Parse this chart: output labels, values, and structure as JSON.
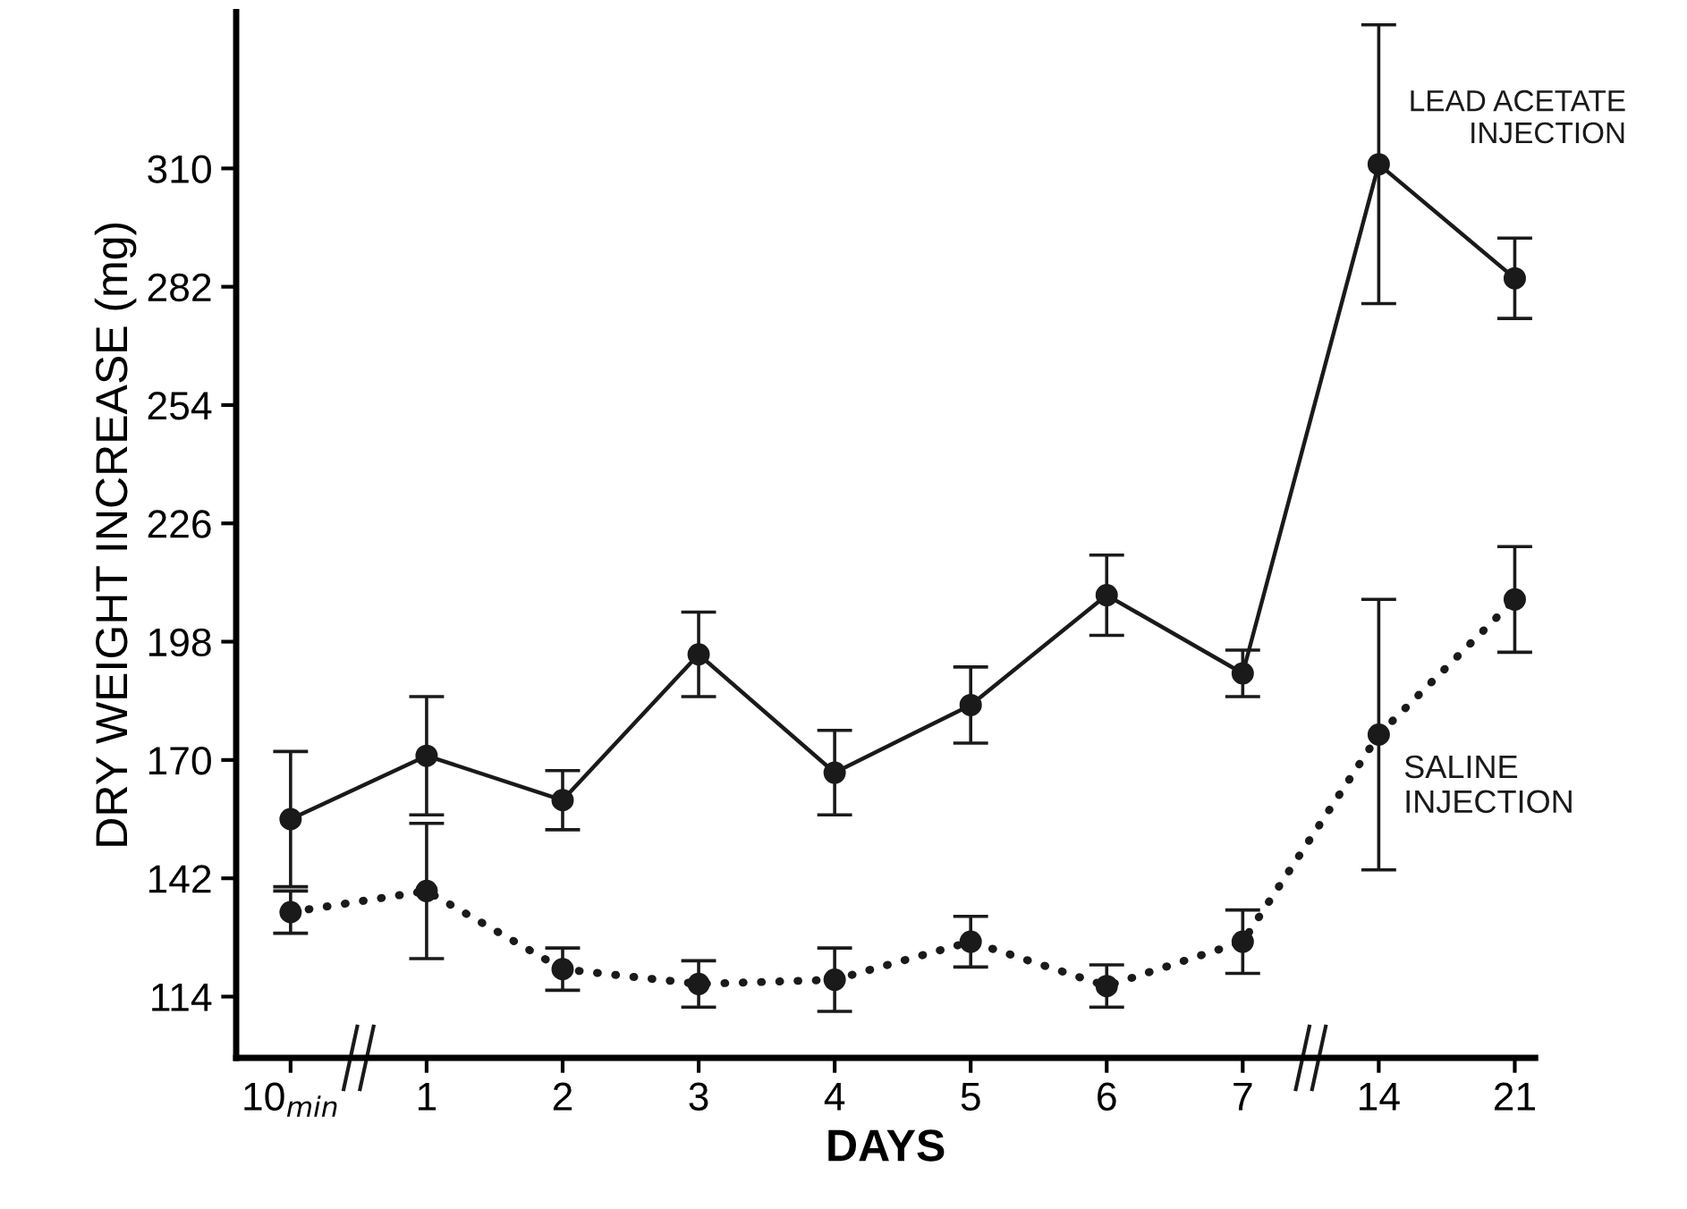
{
  "chart_data": {
    "type": "line",
    "xlabel": "DAYS",
    "ylabel": "DRY WEIGHT INCREASE (mg)",
    "categories": [
      "10$_{min}$",
      "1",
      "2",
      "3",
      "4",
      "5",
      "6",
      "7",
      "14",
      "21"
    ],
    "series": [
      {
        "name": "LEAD ACETATE\nINJECTION",
        "color": "#1a1a1a",
        "line_style": "solid",
        "values": [
          156,
          171,
          160.5,
          195,
          167,
          183,
          209,
          190.5,
          311,
          284
        ],
        "errors": [
          16,
          14,
          7,
          10,
          10,
          9,
          9.5,
          5.5,
          33,
          9.5
        ]
      },
      {
        "name": "SALINE\nINJECTION",
        "color": "#1a1a1a",
        "line_style": "dotted",
        "values": [
          134,
          139,
          120.5,
          117,
          118,
          127,
          116.5,
          127,
          176,
          208
        ],
        "errors": [
          5,
          16,
          5,
          5.5,
          7.5,
          6,
          5,
          7.5,
          32,
          12.5
        ]
      }
    ],
    "ylim": [
      99.5,
      347
    ],
    "yticks": [
      114,
      142,
      170,
      198,
      226,
      254,
      282,
      310
    ],
    "marker": "circle",
    "grid": false,
    "legend": false
  }
}
